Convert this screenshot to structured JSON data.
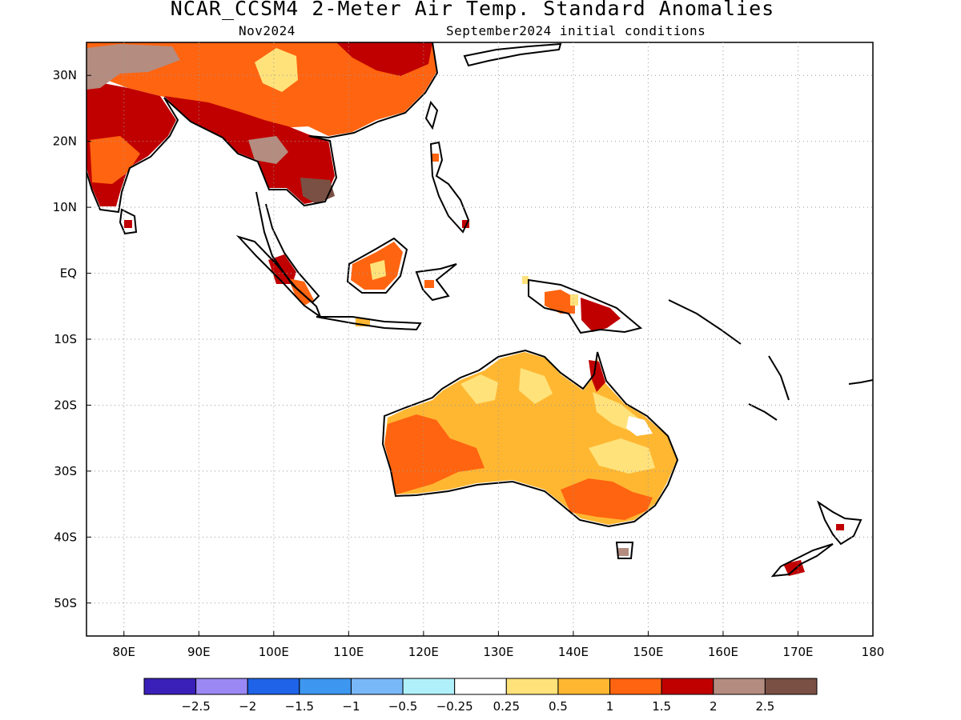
{
  "title": "NCAR_CCSM4 2-Meter Air Temp. Standard Anomalies",
  "subtitle_left": "Nov2024",
  "subtitle_right": "September2024 initial conditions",
  "map": {
    "lon_range": [
      75,
      180
    ],
    "lat_range": [
      -55,
      35
    ],
    "lat_ticks": [
      {
        "value": 30,
        "label": "30N"
      },
      {
        "value": 20,
        "label": "20N"
      },
      {
        "value": 10,
        "label": "10N"
      },
      {
        "value": 0,
        "label": "EQ"
      },
      {
        "value": -10,
        "label": "10S"
      },
      {
        "value": -20,
        "label": "20S"
      },
      {
        "value": -30,
        "label": "30S"
      },
      {
        "value": -40,
        "label": "40S"
      },
      {
        "value": -50,
        "label": "50S"
      }
    ],
    "lon_ticks": [
      {
        "value": 80,
        "label": "80E"
      },
      {
        "value": 90,
        "label": "90E"
      },
      {
        "value": 100,
        "label": "100E"
      },
      {
        "value": 110,
        "label": "110E"
      },
      {
        "value": 120,
        "label": "120E"
      },
      {
        "value": 130,
        "label": "130E"
      },
      {
        "value": 140,
        "label": "140E"
      },
      {
        "value": 150,
        "label": "150E"
      },
      {
        "value": 160,
        "label": "160E"
      },
      {
        "value": 170,
        "label": "170E"
      },
      {
        "value": 180,
        "label": "180"
      }
    ],
    "grid": "dotted"
  },
  "colorbar": {
    "colors": [
      "#3a1fb8",
      "#9b88f5",
      "#1f64e8",
      "#3d96f0",
      "#78b8f8",
      "#b0f0fa",
      "#ffffff",
      "#ffe27a",
      "#ffb732",
      "#ff6410",
      "#c00000",
      "#b48c80",
      "#7a5044"
    ],
    "labels": [
      "-2.5",
      "-2",
      "-1.5",
      "-1",
      "-0.5",
      "-0.25",
      "0.25",
      "0.5",
      "1",
      "1.5",
      "2",
      "2.5"
    ]
  },
  "regions": [
    {
      "name": "Australia interior",
      "level": "0.5-1",
      "color": "#ffb732"
    },
    {
      "name": "Western Australia",
      "level": "1-1.5",
      "color": "#ff6410"
    },
    {
      "name": "Australia pale patches",
      "level": "0.25-0.5",
      "color": "#ffe27a"
    },
    {
      "name": "Southeast Australia",
      "level": "1-1.5",
      "color": "#ff6410"
    },
    {
      "name": "Cape York",
      "level": "1.5-2",
      "color": "#c00000"
    },
    {
      "name": "China",
      "level": "1-1.5",
      "color": "#ff6410"
    },
    {
      "name": "India",
      "level": "1.5-2",
      "color": "#c00000"
    },
    {
      "name": "Indochina",
      "level": "1.5-2",
      "color": "#c00000"
    },
    {
      "name": "Tibet",
      "level": "2-2.5",
      "color": "#b48c80"
    },
    {
      "name": "Cambodia",
      "level": ">2.5",
      "color": "#7a5044"
    },
    {
      "name": "Borneo",
      "level": "1-1.5",
      "color": "#ff6410"
    },
    {
      "name": "New Guinea",
      "level": "1.5-2",
      "color": "#c00000"
    },
    {
      "name": "New Zealand",
      "level": "1.5-2",
      "color": "#c00000"
    }
  ]
}
